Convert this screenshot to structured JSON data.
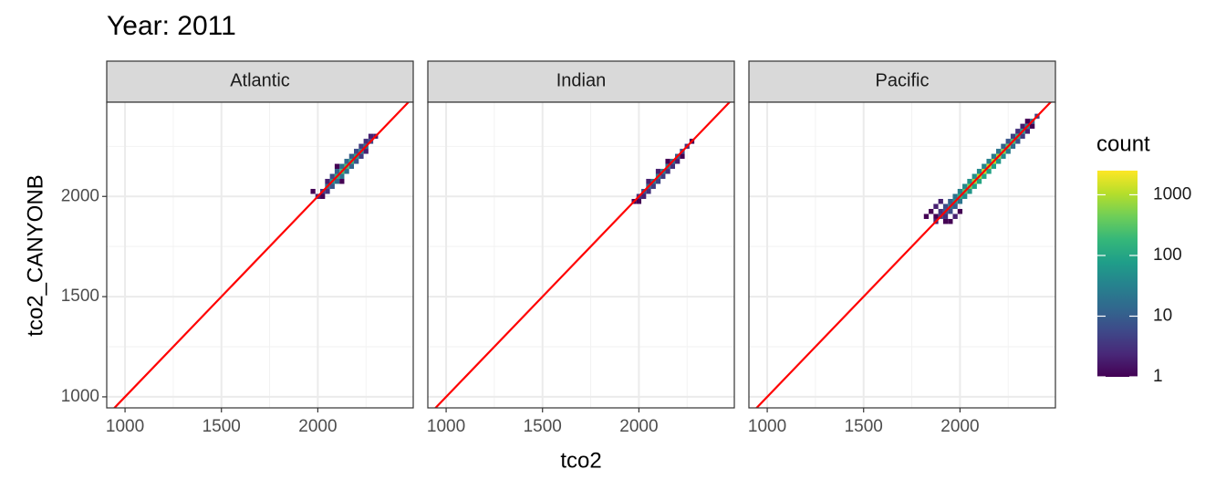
{
  "chart_data": {
    "type": "bin2d",
    "title": "Year: 2011",
    "x_label": "tco2",
    "y_label": "tco2_CANYONB",
    "xlim": [
      905,
      2495
    ],
    "ylim": [
      945,
      2470
    ],
    "xticks": [
      1000,
      1500,
      2000
    ],
    "yticks": [
      1000,
      1500,
      2000
    ],
    "minor_xticks": [
      1250,
      1750,
      2250
    ],
    "minor_yticks": [
      1250,
      1750,
      2250
    ],
    "grid": true,
    "binwidth": 25,
    "identity_line_color": "#ff0000",
    "legend": {
      "title": "count",
      "ticks": [
        1,
        10,
        100,
        1000
      ],
      "limits": [
        1,
        2500
      ],
      "log_scale": true,
      "colors": [
        "#440154",
        "#482878",
        "#3e4989",
        "#31688e",
        "#26828e",
        "#1f9e89",
        "#35b779",
        "#6ece58",
        "#b5de2b",
        "#fde725"
      ]
    },
    "panels": [
      {
        "title": "Atlantic",
        "x": [
          2000,
          2025,
          2050,
          2075,
          2100,
          2125,
          2150,
          2175,
          2200,
          2225,
          2250,
          2275,
          2300,
          2050,
          2075,
          2100,
          2125,
          2150,
          2175,
          2200,
          2225,
          2250,
          2050,
          2075,
          2100,
          2125,
          2150,
          2175,
          2200,
          2225,
          2250,
          2275,
          1975,
          2025,
          2125,
          2100
        ],
        "y": [
          2000,
          2025,
          2050,
          2075,
          2100,
          2125,
          2150,
          2175,
          2200,
          2225,
          2250,
          2275,
          2300,
          2025,
          2050,
          2075,
          2100,
          2125,
          2150,
          2175,
          2200,
          2225,
          2075,
          2100,
          2125,
          2150,
          2175,
          2200,
          2225,
          2250,
          2275,
          2300,
          2025,
          2000,
          2075,
          2150
        ],
        "count": [
          2,
          4,
          20,
          60,
          150,
          250,
          250,
          180,
          90,
          40,
          20,
          6,
          2,
          3,
          8,
          15,
          20,
          18,
          12,
          8,
          4,
          2,
          2,
          6,
          12,
          18,
          15,
          10,
          6,
          4,
          3,
          2,
          1,
          1,
          1,
          1
        ]
      },
      {
        "title": "Indian",
        "x": [
          1975,
          2000,
          2025,
          2050,
          2075,
          2100,
          2125,
          2150,
          2175,
          2200,
          2225,
          2250,
          2275,
          2000,
          2025,
          2050,
          2075,
          2100,
          2125,
          2150,
          2175,
          2200,
          2225,
          2050,
          2100,
          2150
        ],
        "y": [
          1975,
          2000,
          2025,
          2050,
          2075,
          2100,
          2125,
          2150,
          2175,
          2200,
          2225,
          2250,
          2275,
          1975,
          2000,
          2025,
          2050,
          2075,
          2100,
          2125,
          2150,
          2175,
          2200,
          2075,
          2125,
          2175
        ],
        "count": [
          1,
          3,
          8,
          15,
          25,
          30,
          30,
          25,
          18,
          10,
          6,
          3,
          1,
          1,
          2,
          3,
          4,
          5,
          4,
          3,
          3,
          2,
          1,
          2,
          2,
          1
        ]
      },
      {
        "title": "Pacific",
        "x": [
          1875,
          1900,
          1925,
          1950,
          1975,
          2000,
          2025,
          2050,
          2075,
          2100,
          2125,
          2150,
          2175,
          2200,
          2225,
          2250,
          2275,
          2300,
          2325,
          2350,
          2375,
          2400,
          1925,
          1950,
          1975,
          2000,
          2025,
          2050,
          2075,
          2100,
          2125,
          2150,
          2175,
          2200,
          2225,
          2250,
          2275,
          2300,
          2325,
          2350,
          2375,
          1875,
          1900,
          1925,
          1950,
          1975,
          2000,
          2025,
          2050,
          2075,
          2100,
          2125,
          2150,
          2175,
          2200,
          2225,
          2250,
          2275,
          2300,
          2325,
          2350,
          1825,
          1850,
          1875,
          1900,
          1925,
          1950,
          1975,
          2000
        ],
        "y": [
          1875,
          1900,
          1925,
          1950,
          1975,
          2000,
          2025,
          2050,
          2075,
          2100,
          2125,
          2150,
          2175,
          2200,
          2225,
          2250,
          2275,
          2300,
          2325,
          2350,
          2375,
          2400,
          1900,
          1925,
          1950,
          1975,
          2000,
          2025,
          2050,
          2075,
          2100,
          2125,
          2150,
          2175,
          2200,
          2225,
          2250,
          2275,
          2300,
          2325,
          2350,
          1900,
          1925,
          1950,
          1975,
          2000,
          2025,
          2050,
          2075,
          2100,
          2125,
          2150,
          2175,
          2200,
          2225,
          2250,
          2275,
          2300,
          2325,
          2350,
          2375,
          1900,
          1925,
          1950,
          1975,
          1875,
          1875,
          1900,
          1925
        ],
        "count": [
          2,
          5,
          10,
          25,
          60,
          150,
          300,
          500,
          800,
          1000,
          1200,
          1200,
          1000,
          800,
          600,
          400,
          250,
          150,
          80,
          40,
          15,
          5,
          3,
          6,
          10,
          20,
          40,
          60,
          80,
          100,
          100,
          90,
          80,
          60,
          40,
          25,
          15,
          8,
          4,
          2,
          1,
          1,
          3,
          6,
          10,
          20,
          30,
          40,
          50,
          50,
          40,
          35,
          30,
          25,
          20,
          12,
          8,
          5,
          3,
          2,
          1,
          1,
          1,
          2,
          2,
          1,
          1,
          2,
          1
        ]
      }
    ]
  }
}
